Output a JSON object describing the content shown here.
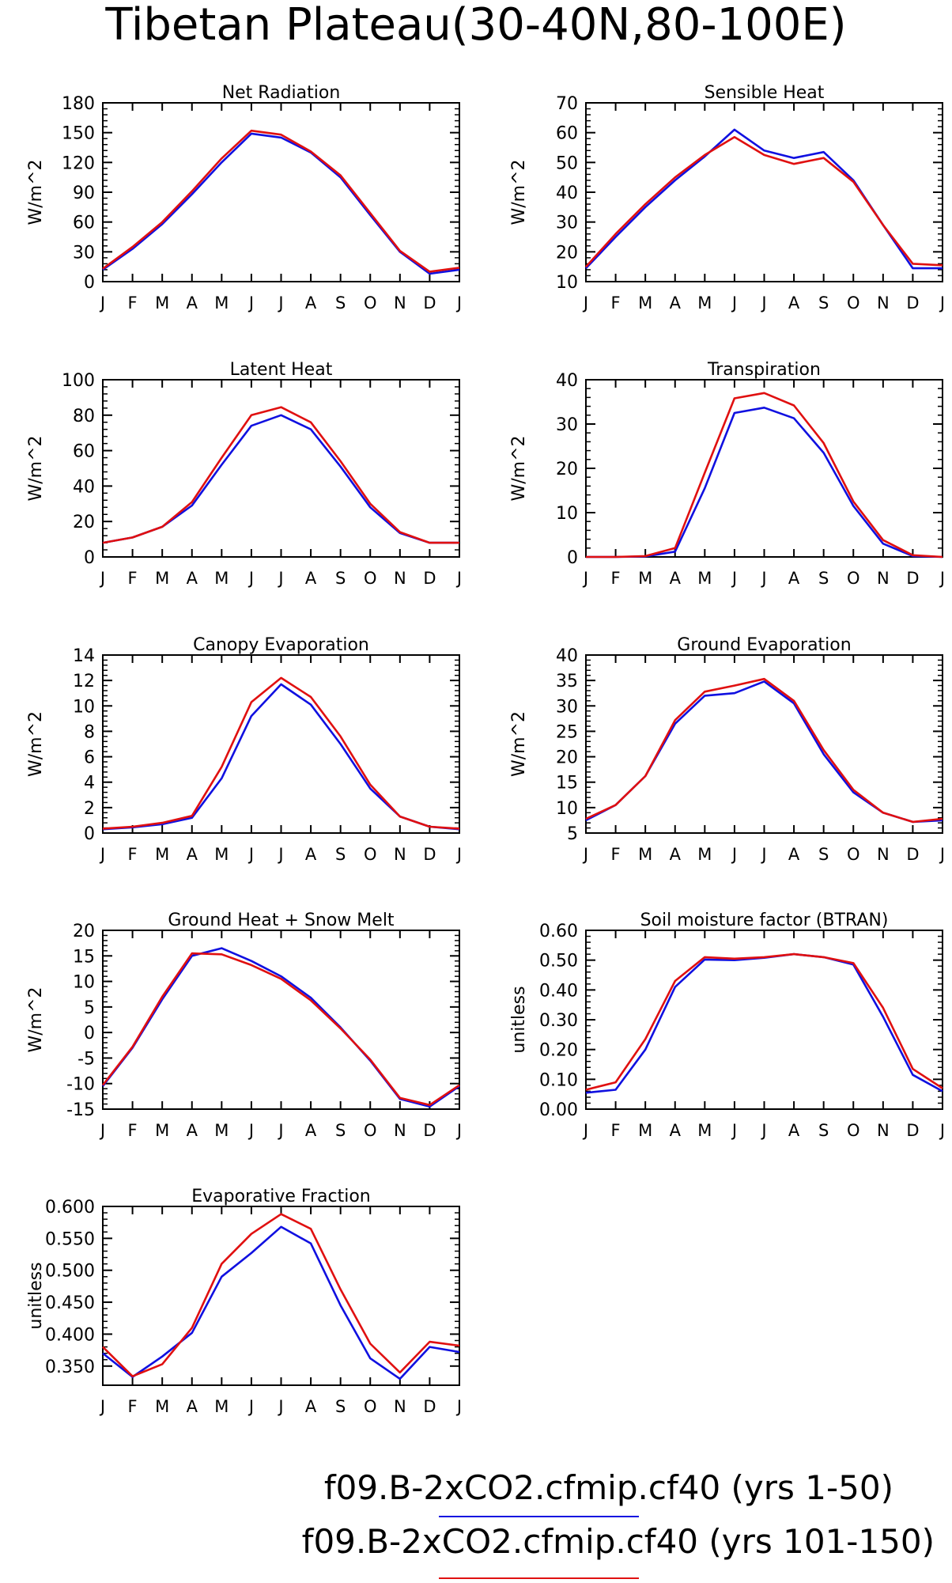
{
  "page": {
    "title": "Tibetan Plateau(30-40N,80-100E)"
  },
  "colors": {
    "series_a": "#1010e0",
    "series_b": "#e01010",
    "axis": "#000000"
  },
  "legend": {
    "entries": [
      {
        "label": "f09.B-2xCO2.cfmip.cf40 (yrs 1-50)",
        "color": "#1010e0"
      },
      {
        "label": "f09.B-2xCO2.cfmip.cf40 (yrs 101-150)",
        "color": "#e01010"
      }
    ]
  },
  "chart_data": [
    {
      "type": "line",
      "title": "Net Radiation",
      "ylabel": "W/m^2",
      "categories": [
        "J",
        "F",
        "M",
        "A",
        "M",
        "J",
        "J",
        "A",
        "S",
        "O",
        "N",
        "D",
        "J"
      ],
      "ylim": [
        0,
        180
      ],
      "yticks": [
        0,
        30,
        60,
        90,
        120,
        150,
        180
      ],
      "ytick_labels": [
        "0",
        "30",
        "60",
        "90",
        "120",
        "150",
        "180"
      ],
      "series": [
        {
          "color": "#1010e0",
          "values": [
            12,
            33,
            58,
            88,
            120,
            149,
            145,
            130,
            105,
            67,
            30,
            8,
            12
          ]
        },
        {
          "color": "#e01010",
          "values": [
            13,
            35,
            60,
            91,
            124,
            152,
            148,
            131,
            107,
            69,
            31,
            10,
            14
          ]
        }
      ]
    },
    {
      "type": "line",
      "title": "Sensible Heat",
      "ylabel": "W/m^2",
      "categories": [
        "J",
        "F",
        "M",
        "A",
        "M",
        "J",
        "J",
        "A",
        "S",
        "O",
        "N",
        "D",
        "J"
      ],
      "ylim": [
        10,
        70
      ],
      "yticks": [
        10,
        20,
        30,
        40,
        50,
        60,
        70
      ],
      "ytick_labels": [
        "10",
        "20",
        "30",
        "40",
        "50",
        "60",
        "70"
      ],
      "series": [
        {
          "color": "#1010e0",
          "values": [
            14.5,
            25,
            35,
            44,
            52,
            61,
            54,
            51.5,
            53.5,
            44,
            29,
            14.5,
            14.5
          ]
        },
        {
          "color": "#e01010",
          "values": [
            15,
            26,
            36,
            45,
            52.5,
            58.5,
            52.5,
            49.5,
            51.5,
            43.5,
            29,
            16,
            15.5
          ]
        }
      ]
    },
    {
      "type": "line",
      "title": "Latent Heat",
      "ylabel": "W/m^2",
      "categories": [
        "J",
        "F",
        "M",
        "A",
        "M",
        "J",
        "J",
        "A",
        "S",
        "O",
        "N",
        "D",
        "J"
      ],
      "ylim": [
        0,
        100
      ],
      "yticks": [
        0,
        20,
        40,
        60,
        80,
        100
      ],
      "ytick_labels": [
        "0",
        "20",
        "40",
        "60",
        "80",
        "100"
      ],
      "series": [
        {
          "color": "#1010e0",
          "values": [
            8,
            11,
            17,
            29,
            52,
            74,
            80,
            72,
            51,
            28,
            13.5,
            8,
            8
          ]
        },
        {
          "color": "#e01010",
          "values": [
            8,
            11,
            17,
            31,
            56,
            80,
            84.5,
            76,
            54,
            30,
            14,
            8,
            8
          ]
        }
      ]
    },
    {
      "type": "line",
      "title": "Transpiration",
      "ylabel": "W/m^2",
      "categories": [
        "J",
        "F",
        "M",
        "A",
        "M",
        "J",
        "J",
        "A",
        "S",
        "O",
        "N",
        "D",
        "J"
      ],
      "ylim": [
        0,
        40
      ],
      "yticks": [
        0,
        10,
        20,
        30,
        40
      ],
      "ytick_labels": [
        "0",
        "10",
        "20",
        "30",
        "40"
      ],
      "series": [
        {
          "color": "#1010e0",
          "values": [
            0,
            0,
            0.1,
            1.2,
            15.5,
            32.5,
            33.7,
            31.3,
            23.5,
            11.5,
            3,
            0.2,
            0
          ]
        },
        {
          "color": "#e01010",
          "values": [
            0,
            0,
            0.2,
            2,
            19,
            35.8,
            37,
            34.2,
            25.7,
            12.5,
            3.8,
            0.4,
            0
          ]
        }
      ]
    },
    {
      "type": "line",
      "title": "Canopy Evaporation",
      "ylabel": "W/m^2",
      "categories": [
        "J",
        "F",
        "M",
        "A",
        "M",
        "J",
        "J",
        "A",
        "S",
        "O",
        "N",
        "D",
        "J"
      ],
      "ylim": [
        0,
        14
      ],
      "yticks": [
        0,
        2,
        4,
        6,
        8,
        10,
        12,
        14
      ],
      "ytick_labels": [
        "0",
        "2",
        "4",
        "6",
        "8",
        "10",
        "12",
        "14"
      ],
      "series": [
        {
          "color": "#1010e0",
          "values": [
            0.3,
            0.45,
            0.7,
            1.2,
            4.3,
            9.2,
            11.7,
            10.1,
            7,
            3.5,
            1.3,
            0.5,
            0.3
          ]
        },
        {
          "color": "#e01010",
          "values": [
            0.35,
            0.5,
            0.8,
            1.35,
            5.2,
            10.3,
            12.2,
            10.7,
            7.6,
            3.8,
            1.3,
            0.5,
            0.35
          ]
        }
      ]
    },
    {
      "type": "line",
      "title": "Ground Evaporation",
      "ylabel": "W/m^2",
      "categories": [
        "J",
        "F",
        "M",
        "A",
        "M",
        "J",
        "J",
        "A",
        "S",
        "O",
        "N",
        "D",
        "J"
      ],
      "ylim": [
        5,
        40
      ],
      "yticks": [
        5,
        10,
        15,
        20,
        25,
        30,
        35,
        40
      ],
      "ytick_labels": [
        "5",
        "10",
        "15",
        "20",
        "25",
        "30",
        "35",
        "40"
      ],
      "series": [
        {
          "color": "#1010e0",
          "values": [
            7.5,
            10.5,
            16.2,
            26.5,
            32,
            32.5,
            34.8,
            30.5,
            20.5,
            13,
            9,
            7.2,
            7.5
          ]
        },
        {
          "color": "#e01010",
          "values": [
            7.8,
            10.5,
            16.2,
            27.2,
            32.8,
            34,
            35.3,
            31,
            21.3,
            13.5,
            9,
            7.2,
            7.8
          ]
        }
      ]
    },
    {
      "type": "line",
      "title": "Ground Heat + Snow Melt",
      "ylabel": "W/m^2",
      "categories": [
        "J",
        "F",
        "M",
        "A",
        "M",
        "J",
        "J",
        "A",
        "S",
        "O",
        "N",
        "D",
        "J"
      ],
      "ylim": [
        -15,
        20
      ],
      "yticks": [
        -15,
        -10,
        -5,
        0,
        5,
        10,
        15,
        20
      ],
      "ytick_labels": [
        "-15",
        "-10",
        "-5",
        "0",
        "5",
        "10",
        "15",
        "20"
      ],
      "series": [
        {
          "color": "#1010e0",
          "values": [
            -10.5,
            -3,
            6.5,
            15,
            16.5,
            14,
            11,
            6.8,
            1,
            -5.5,
            -13,
            -14.5,
            -10.5
          ]
        },
        {
          "color": "#e01010",
          "values": [
            -10.3,
            -2.8,
            7,
            15.5,
            15.3,
            13.2,
            10.5,
            6.3,
            0.8,
            -5.3,
            -12.8,
            -14.2,
            -10.3
          ]
        }
      ]
    },
    {
      "type": "line",
      "title": "Soil moisture factor (BTRAN)",
      "ylabel": "unitless",
      "categories": [
        "J",
        "F",
        "M",
        "A",
        "M",
        "J",
        "J",
        "A",
        "S",
        "O",
        "N",
        "D",
        "J"
      ],
      "ylim": [
        0,
        0.6
      ],
      "yticks": [
        0,
        0.1,
        0.2,
        0.3,
        0.4,
        0.5,
        0.6
      ],
      "ytick_labels": [
        "0.00",
        "0.10",
        "0.20",
        "0.30",
        "0.40",
        "0.50",
        "0.60"
      ],
      "series": [
        {
          "color": "#1010e0",
          "values": [
            0.055,
            0.065,
            0.2,
            0.41,
            0.502,
            0.5,
            0.508,
            0.52,
            0.51,
            0.485,
            0.31,
            0.115,
            0.06
          ]
        },
        {
          "color": "#e01010",
          "values": [
            0.065,
            0.09,
            0.235,
            0.43,
            0.51,
            0.505,
            0.51,
            0.52,
            0.51,
            0.49,
            0.34,
            0.135,
            0.07
          ]
        }
      ]
    },
    {
      "type": "line",
      "title": "Evaporative Fraction",
      "ylabel": "unitless",
      "categories": [
        "J",
        "F",
        "M",
        "A",
        "M",
        "J",
        "J",
        "A",
        "S",
        "O",
        "N",
        "D",
        "J"
      ],
      "ylim": [
        0.32,
        0.6
      ],
      "yticks": [
        0.35,
        0.4,
        0.45,
        0.5,
        0.55,
        0.6
      ],
      "ytick_labels": [
        "0.350",
        "0.400",
        "0.450",
        "0.500",
        "0.550",
        "0.600"
      ],
      "series": [
        {
          "color": "#1010e0",
          "values": [
            0.37,
            0.333,
            0.365,
            0.402,
            0.49,
            0.527,
            0.568,
            0.542,
            0.445,
            0.362,
            0.33,
            0.38,
            0.372
          ]
        },
        {
          "color": "#e01010",
          "values": [
            0.38,
            0.334,
            0.353,
            0.41,
            0.51,
            0.557,
            0.588,
            0.565,
            0.47,
            0.385,
            0.34,
            0.388,
            0.382
          ]
        }
      ]
    }
  ]
}
